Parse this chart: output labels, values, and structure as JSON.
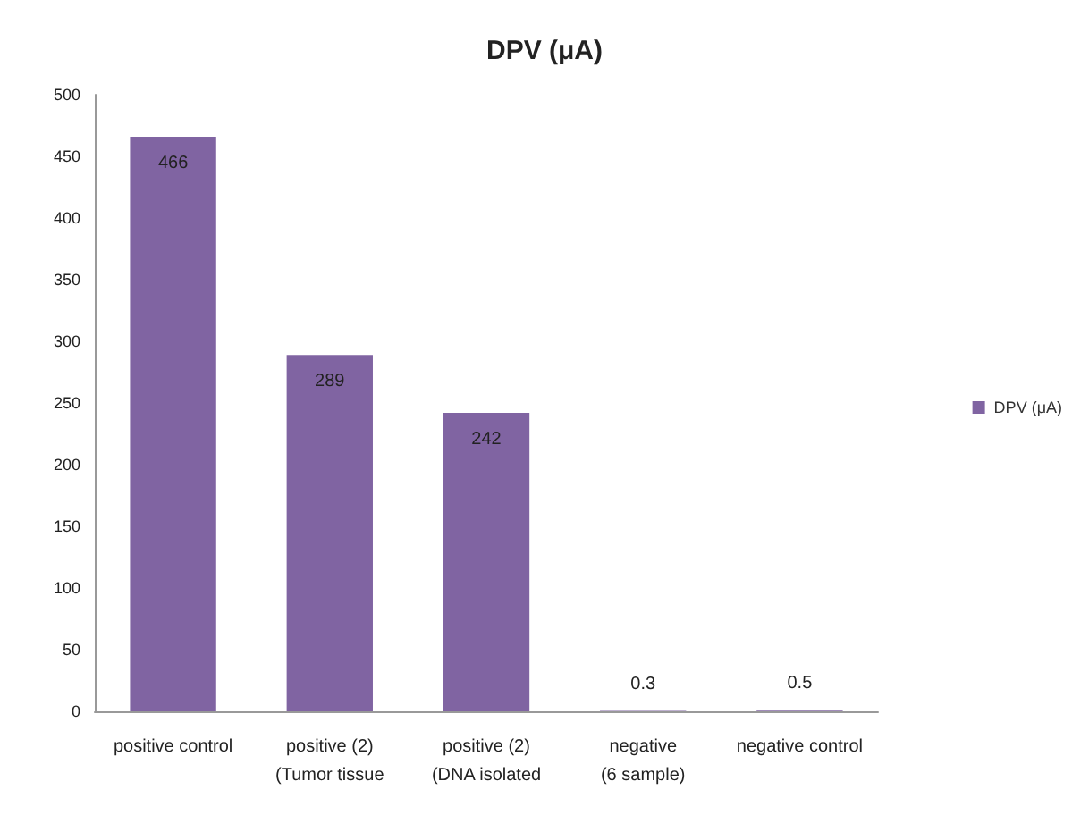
{
  "chart_data": {
    "type": "bar",
    "title": "DPV (μA)",
    "categories": [
      "positive control",
      "positive (2)\n(Tumor tissue",
      "positive (2)\n(DNA isolated",
      "negative\n(6 sample)",
      "negative control"
    ],
    "series": [
      {
        "name": "DPV (μA)",
        "color": "#8064a2",
        "values": [
          466,
          289,
          242,
          0.3,
          0.5
        ]
      }
    ],
    "ylim": [
      0,
      500
    ],
    "yticks": [
      0,
      50,
      100,
      150,
      200,
      250,
      300,
      350,
      400,
      450,
      500
    ],
    "grid": false,
    "legend": "right",
    "data_labels": true
  }
}
